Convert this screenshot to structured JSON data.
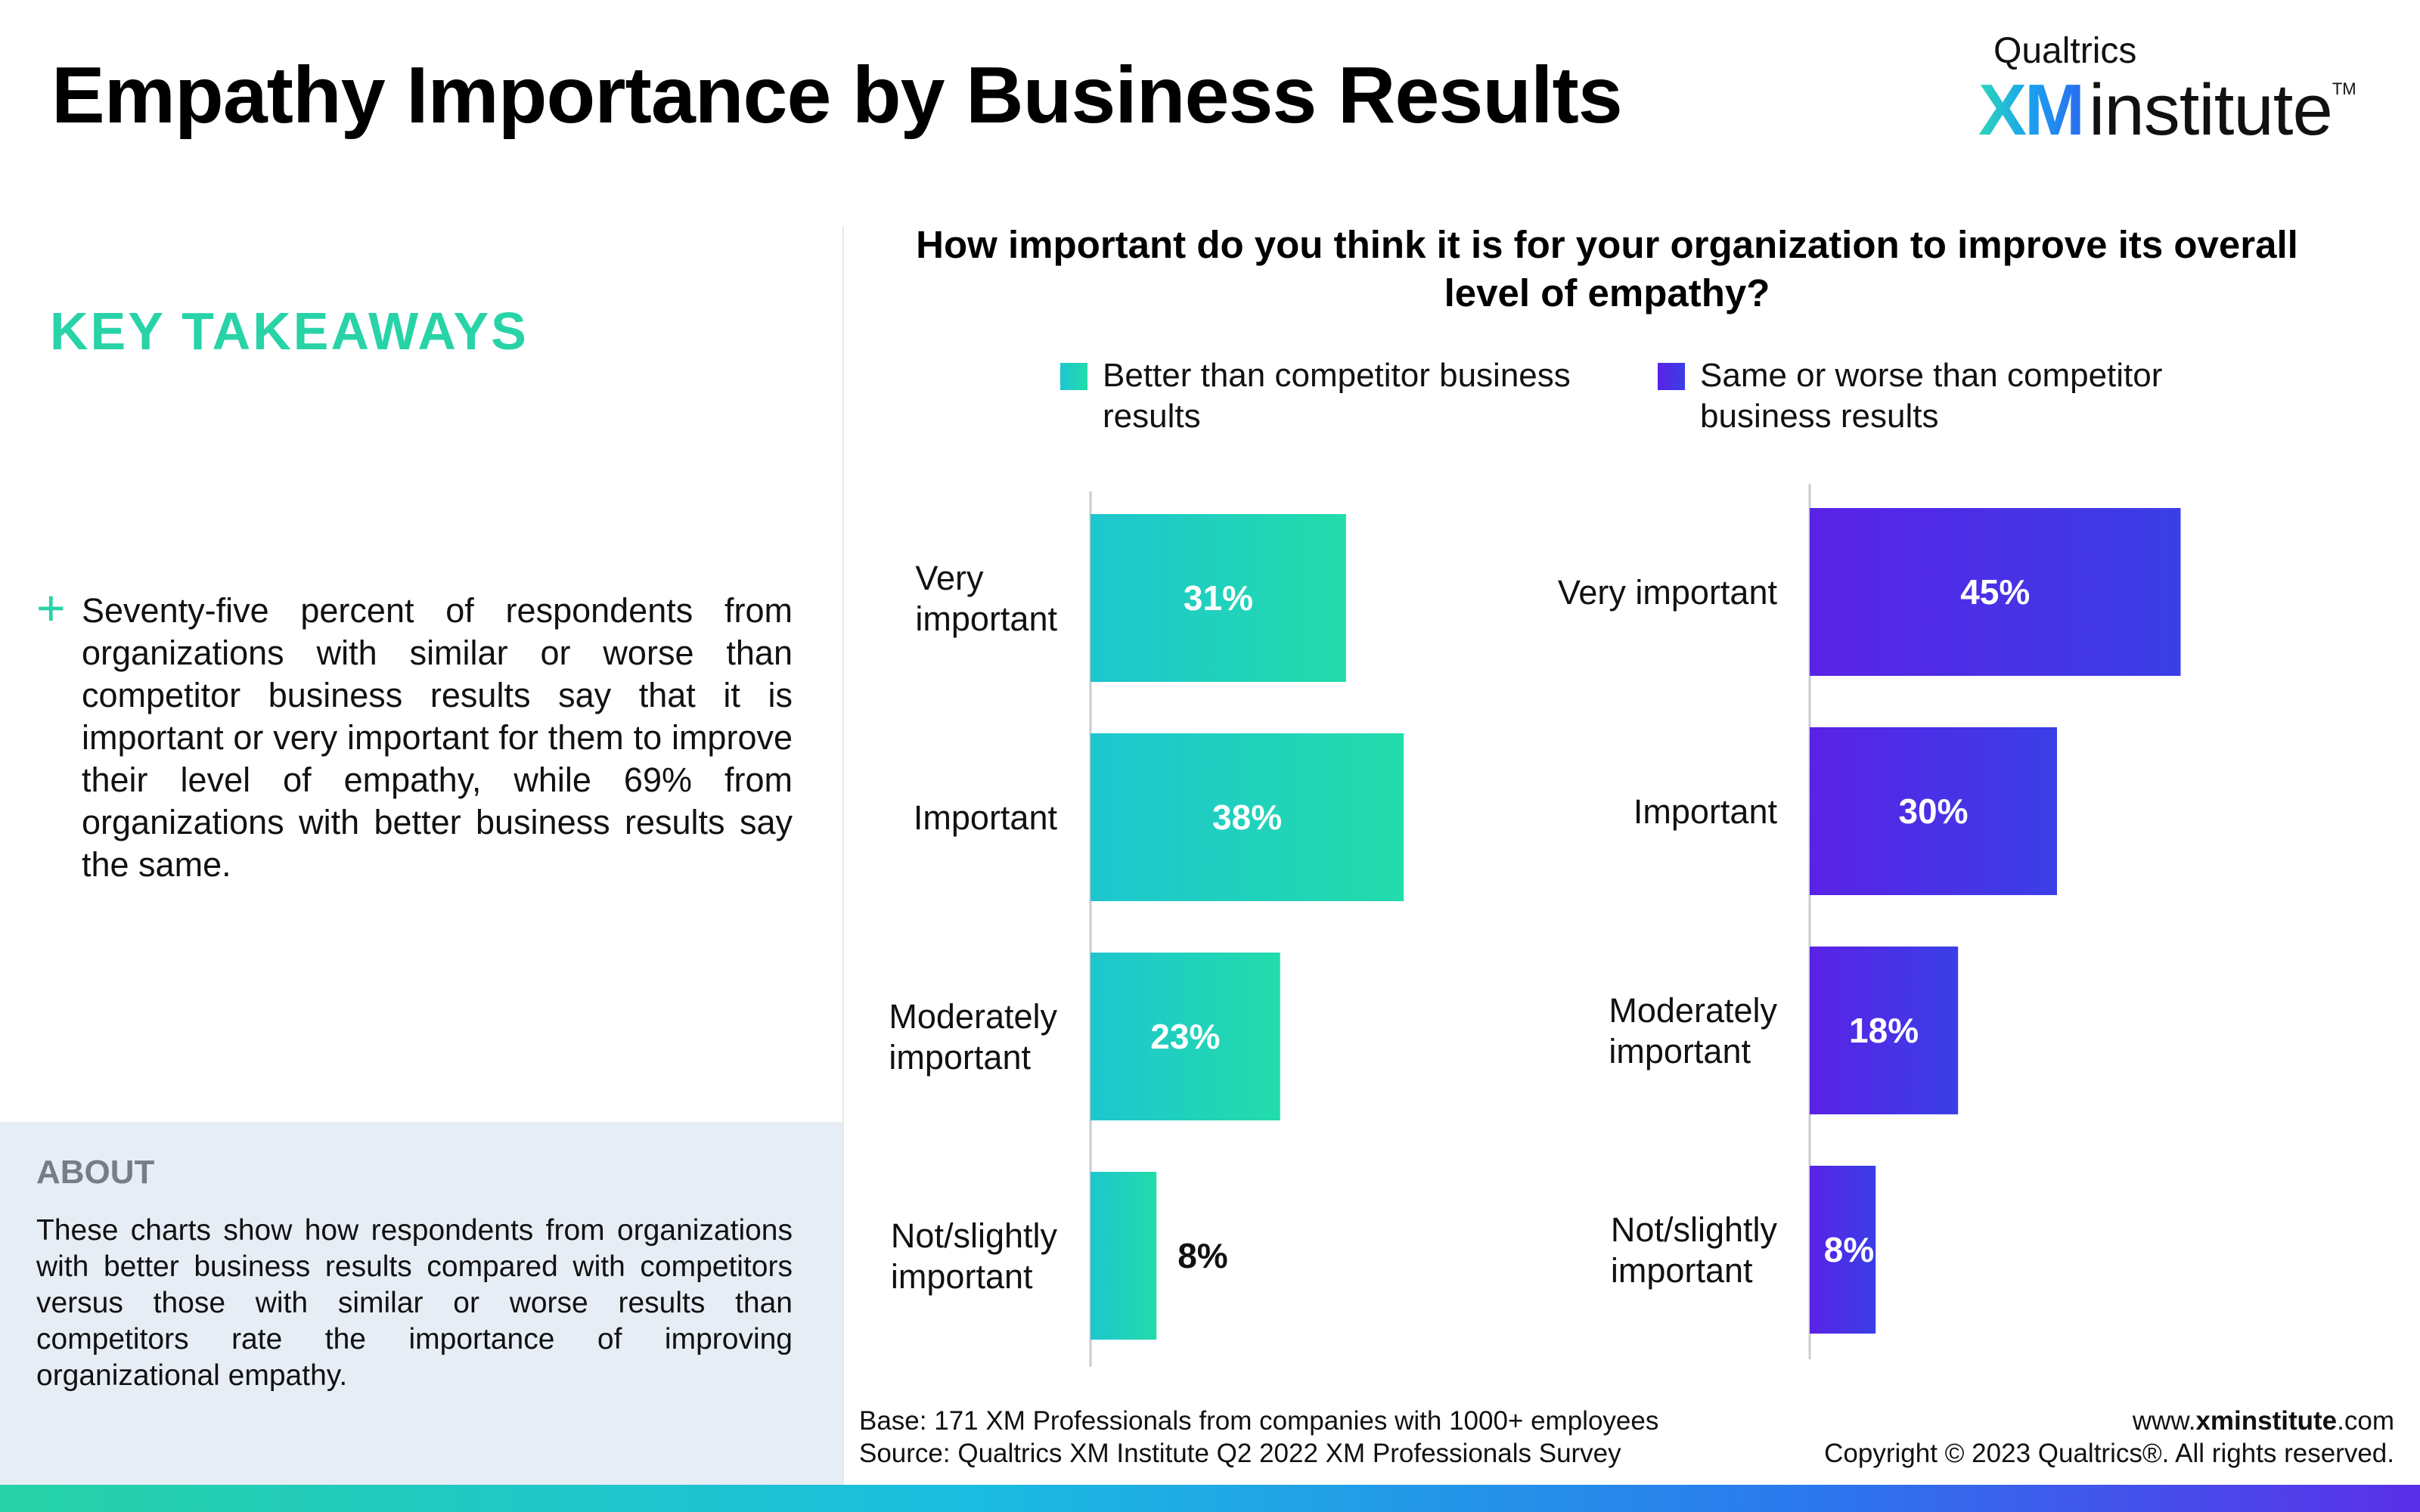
{
  "page": {
    "title": "Empathy Importance by Business Results"
  },
  "logo": {
    "top": "Qualtrics",
    "xm": "XM",
    "institute": "institute",
    "tm": "TM"
  },
  "takeaways": {
    "heading": "KEY TAKEAWAYS",
    "bullet_symbol": "+",
    "bullet_text": "Seventy-five percent of respondents from organizations with similar or worse than competitor business results say that it is important or very important for them to improve their level of empathy, while 69% from organizations with better business results say the same."
  },
  "about": {
    "heading": "ABOUT",
    "text": "These charts show how respondents from organizations with better business results compared with competitors versus those with similar or worse results than competitors rate the importance of improving organizational empathy."
  },
  "chart_data": {
    "type": "bar",
    "orientation": "horizontal",
    "title": "How important do you think it is for your organization to improve its overall level of empathy?",
    "value_suffix": "%",
    "legend_position": "top",
    "xlim": [
      0,
      50
    ],
    "series": [
      {
        "name": "Better than competitor business results",
        "name_lines": [
          "Better than competitor business",
          "results"
        ],
        "color_start": "#1ec6cf",
        "color_end": "#22dcaa",
        "categories": [
          "Very important",
          "Important",
          "Moderately important",
          "Not/slightly important"
        ],
        "category_lines": [
          [
            "Very",
            "important"
          ],
          [
            "Important"
          ],
          [
            "Moderately",
            "important"
          ],
          [
            "Not/slightly",
            "important"
          ]
        ],
        "values": [
          31,
          38,
          23,
          8
        ],
        "labels": [
          "31%",
          "38%",
          "23%",
          "8%"
        ]
      },
      {
        "name": "Same or worse than competitor business results",
        "name_lines": [
          "Same or worse than competitor",
          "business results"
        ],
        "color_start": "#5a22e6",
        "color_end": "#3a3fe6",
        "categories": [
          "Very important",
          "Important",
          "Moderately important",
          "Not/slightly important"
        ],
        "category_lines": [
          [
            "Very important"
          ],
          [
            "Important"
          ],
          [
            "Moderately",
            "important"
          ],
          [
            "Not/slightly",
            "important"
          ]
        ],
        "values": [
          45,
          30,
          18,
          8
        ],
        "labels": [
          "45%",
          "30%",
          "18%",
          "8%"
        ]
      }
    ]
  },
  "footer": {
    "base": "Base: 171 XM Professionals from companies with 1000+ employees",
    "source": "Source: Qualtrics XM Institute Q2 2022 XM Professionals Survey",
    "url_prefix": "www.",
    "url_bold": "xminstitute",
    "url_suffix": ".com",
    "copyright": "Copyright © 2023 Qualtrics®. All rights reserved."
  }
}
